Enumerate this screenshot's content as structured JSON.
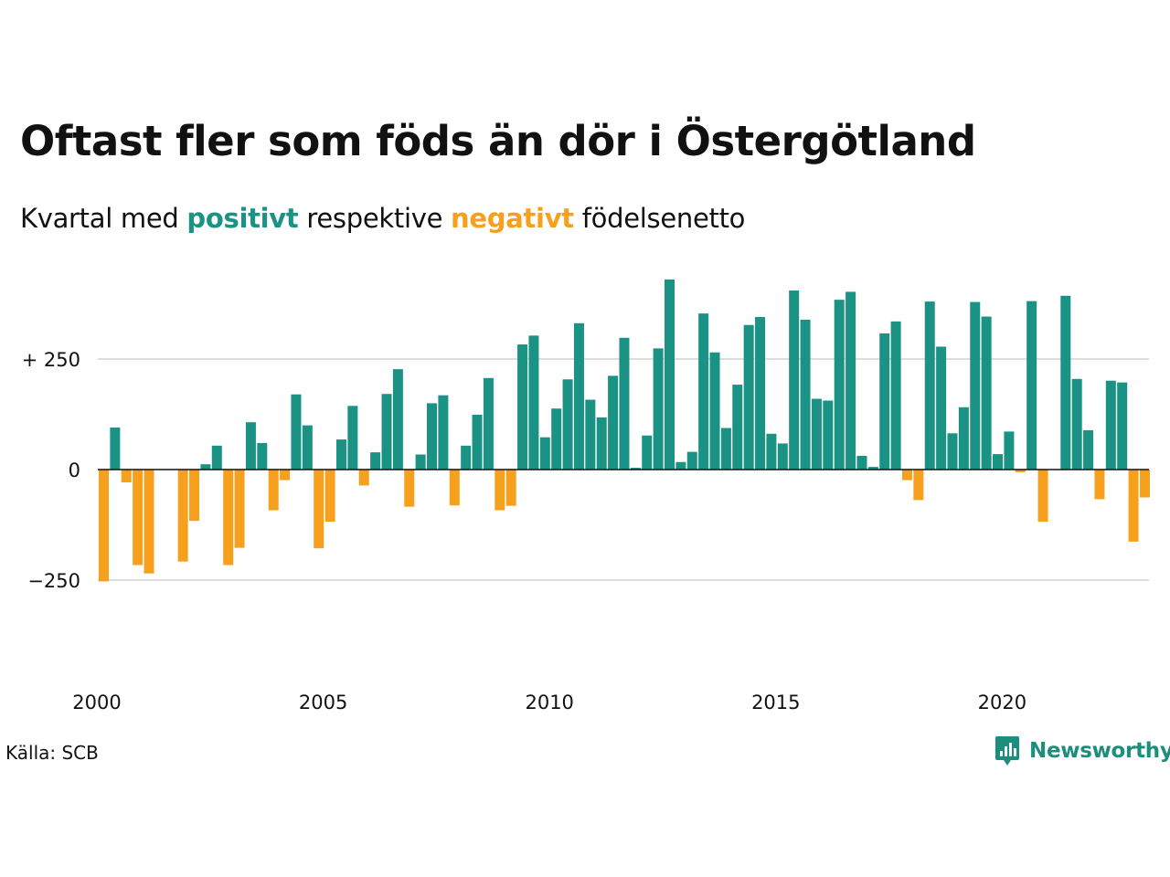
{
  "title": "Oftast fler som föds än dör i Östergötland",
  "subtitle": {
    "prefix": "Kvartal med ",
    "positive": "positivt",
    "middle": " respektive ",
    "negative": "negativt",
    "suffix": " födelsenetto"
  },
  "source": "Källa: SCB",
  "brand": "Newsworthy",
  "colors": {
    "positive": "#1b9384",
    "negative": "#f6a01d",
    "grid": "#dddddd",
    "zero_line": "#111111"
  },
  "chart_data": {
    "type": "bar",
    "ylim": [
      -420,
      475
    ],
    "y_ticks": [
      {
        "value": 250,
        "label": "+ 250"
      },
      {
        "value": 0,
        "label": "0"
      },
      {
        "value": -250,
        "label": "−250"
      }
    ],
    "x_start": 2000,
    "x_ticks": [
      {
        "value": 2000,
        "label": "2000"
      },
      {
        "value": 2005,
        "label": "2005"
      },
      {
        "value": 2010,
        "label": "2010"
      },
      {
        "value": 2015,
        "label": "2015"
      },
      {
        "value": 2020,
        "label": "2020"
      }
    ],
    "grid": true,
    "values": [
      -253,
      95,
      -29,
      -216,
      -235,
      0,
      0,
      -208,
      -116,
      12,
      54,
      -216,
      -177,
      107,
      60,
      -92,
      -24,
      170,
      100,
      -178,
      -118,
      68,
      144,
      -36,
      39,
      171,
      227,
      -84,
      34,
      150,
      168,
      -81,
      54,
      124,
      207,
      -92,
      -82,
      283,
      303,
      73,
      138,
      204,
      331,
      158,
      118,
      212,
      298,
      4,
      77,
      274,
      430,
      17,
      40,
      353,
      265,
      94,
      192,
      327,
      345,
      81,
      59,
      405,
      339,
      160,
      156,
      384,
      402,
      31,
      6,
      308,
      335,
      -24,
      -69,
      380,
      278,
      82,
      141,
      379,
      346,
      35,
      86,
      -6,
      381,
      -118,
      0,
      393,
      205,
      89,
      -67,
      201,
      197,
      -163,
      -63
    ]
  }
}
